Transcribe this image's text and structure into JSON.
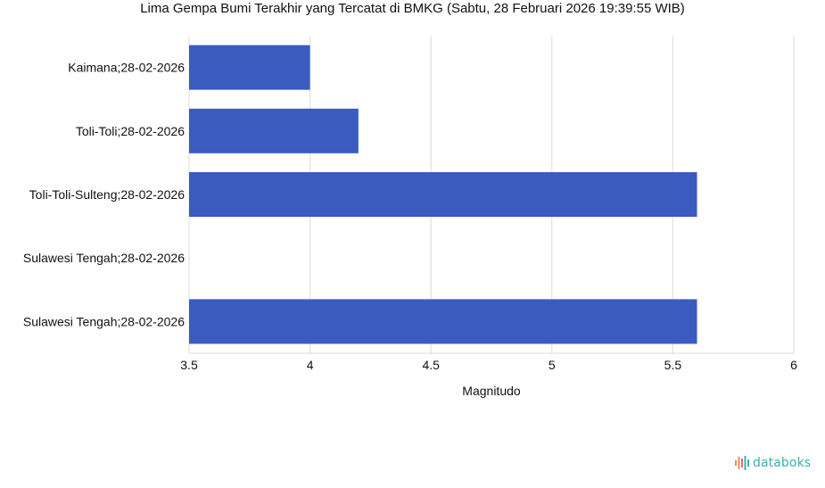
{
  "chart_data": {
    "type": "bar",
    "orientation": "horizontal",
    "title": "Lima Gempa Bumi Terakhir yang Tercatat di BMKG (Sabtu, 28 Februari 2026 19:39:55 WIB)",
    "xlabel": "Magnitudo",
    "ylabel": "",
    "categories": [
      "Kaimana;28-02-2026",
      "Toli-Toli;28-02-2026",
      "Toli-Toli-Sulteng;28-02-2026",
      "Sulawesi Tengah;28-02-2026",
      "Sulawesi Tengah;28-02-2026"
    ],
    "values": [
      4.0,
      4.2,
      5.6,
      null,
      5.6
    ],
    "xlim": [
      3.5,
      6
    ],
    "xticks": [
      "3.5",
      "4",
      "4.5",
      "5",
      "5.5",
      "6"
    ],
    "grid": true,
    "legend": "none",
    "bar_color": "#3a5bbf"
  },
  "branding": {
    "logo_text": "databoks"
  }
}
